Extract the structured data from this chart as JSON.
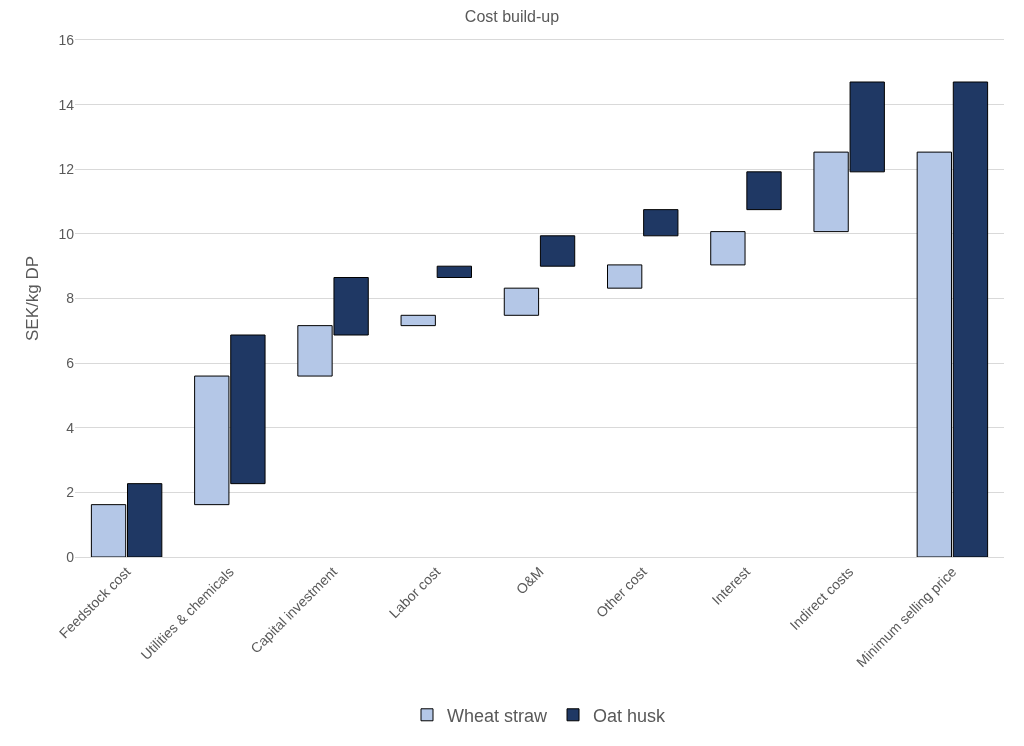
{
  "chart_data": {
    "type": "bar",
    "title": "Cost build-up",
    "ylabel": "SEK/kg DP",
    "categories": [
      "Feedstock cost",
      "Utilities & chemicals",
      "Capital investment",
      "Labor cost",
      "O&M",
      "Other cost",
      "Interest",
      "Indirect costs",
      "Minimum selling price"
    ],
    "series": [
      {
        "name": "Wheat straw",
        "color": "#b4c7e7",
        "values": [
          1.62,
          3.98,
          1.56,
          0.32,
          0.84,
          0.72,
          1.03,
          2.46,
          12.53
        ],
        "base": [
          0,
          1.62,
          5.6,
          7.16,
          7.48,
          8.32,
          9.04,
          10.07,
          0
        ]
      },
      {
        "name": "Oat husk",
        "color": "#1f3864",
        "values": [
          2.27,
          4.6,
          1.78,
          0.35,
          0.94,
          0.81,
          1.17,
          2.78,
          14.7
        ],
        "base": [
          0,
          2.27,
          6.87,
          8.65,
          9.0,
          9.94,
          10.75,
          11.92,
          0
        ]
      }
    ],
    "ylim": [
      0,
      16
    ],
    "yticks": [
      0,
      2,
      4,
      6,
      8,
      10,
      12,
      14,
      16
    ],
    "grid": "y",
    "legend": "bottom"
  }
}
